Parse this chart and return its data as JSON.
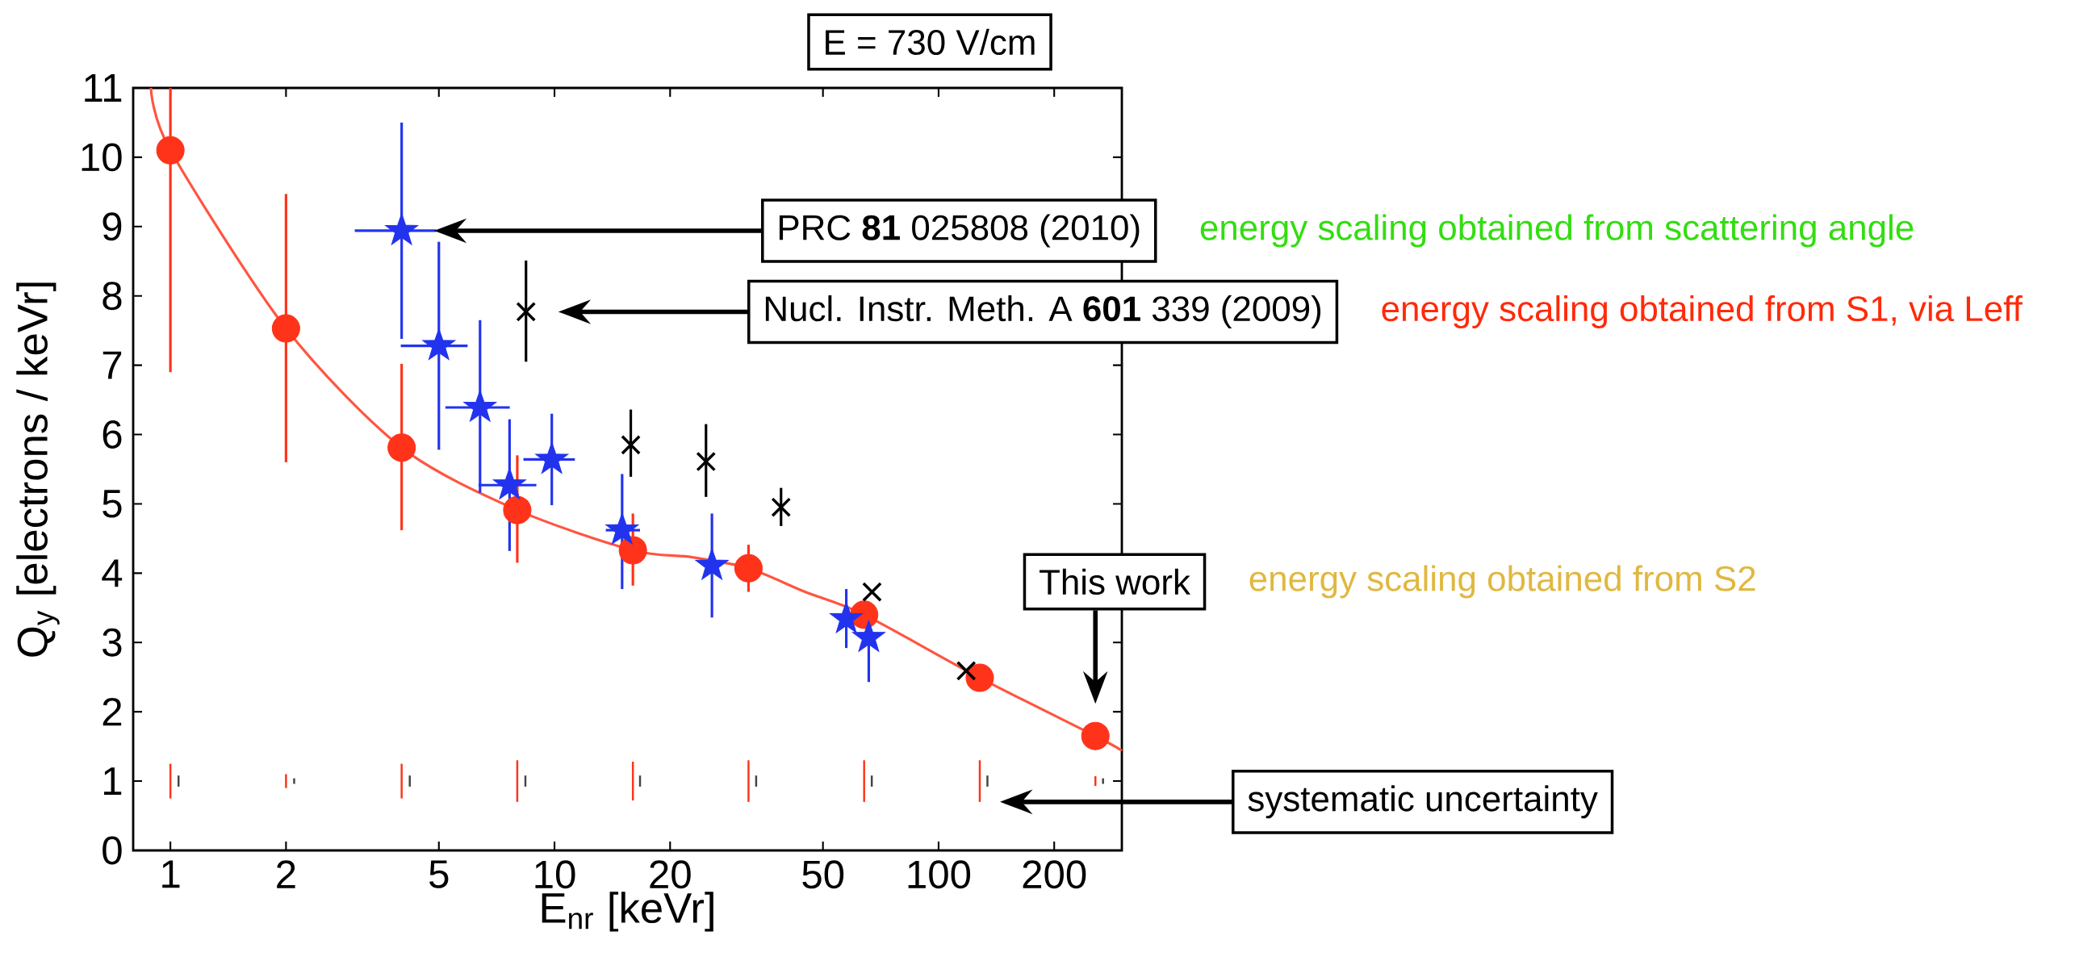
{
  "chart_data": {
    "type": "scatter",
    "xlabel": "E$_{nr}$ [keVr]",
    "ylabel": "Q$_{y}$ [electrons / keVr]",
    "log": "x",
    "xlim": [
      0.8,
      300
    ],
    "ylim": [
      0,
      11
    ],
    "xticks": [
      1,
      2,
      5,
      10,
      20,
      50,
      100,
      200
    ],
    "yticks": [
      0,
      1,
      2,
      3,
      4,
      5,
      6,
      7,
      8,
      9,
      10,
      11
    ],
    "series": [
      {
        "marker": "circle",
        "color": "#ff3319",
        "x": [
          1,
          2,
          4,
          8,
          16,
          32,
          64,
          128,
          256
        ],
        "values": [
          10.1,
          7.53,
          5.81,
          4.91,
          4.33,
          4.07,
          3.4,
          2.49,
          1.65
        ],
        "errors": [
          [
            6.9,
            11
          ],
          [
            5.6,
            9.47
          ],
          [
            4.62,
            7.02
          ],
          [
            4.15,
            5.7
          ],
          [
            3.82,
            4.86
          ],
          [
            3.73,
            4.41
          ],
          null,
          null,
          null
        ]
      },
      {
        "type": "line",
        "marker": "none",
        "color": "#ff5540",
        "x": [
          0.89,
          1,
          2,
          4,
          8,
          16,
          22.8,
          32,
          44.9,
          64,
          128,
          256,
          300
        ],
        "values": [
          11,
          10.1,
          7.53,
          5.81,
          4.91,
          4.33,
          4.23,
          4.07,
          3.73,
          3.4,
          2.49,
          1.65,
          1.44
        ]
      },
      {
        "marker": "star",
        "color": "#2233ee",
        "x": [
          4.0,
          5.0,
          6.4,
          7.64,
          9.84,
          15.0,
          25.7,
          57.5,
          65.8
        ],
        "values": [
          8.94,
          7.28,
          6.39,
          5.27,
          5.64,
          4.62,
          4.11,
          3.34,
          3.07
        ],
        "errors": [
          [
            7.38,
            10.5
          ],
          [
            5.78,
            8.78
          ],
          [
            5.16,
            7.65
          ],
          [
            4.32,
            6.22
          ],
          [
            4.98,
            6.3
          ],
          [
            3.77,
            5.43
          ],
          [
            3.36,
            4.86
          ],
          [
            2.92,
            3.77
          ],
          [
            2.43,
            3.32
          ]
        ],
        "xerrors": [
          [
            3.02,
            4.92
          ],
          [
            3.98,
            5.94
          ],
          [
            5.2,
            7.65
          ],
          [
            6.34,
            8.97
          ],
          [
            8.3,
            11.3
          ],
          [
            13.6,
            16.7
          ],
          null,
          null,
          null
        ]
      },
      {
        "marker": "cross",
        "color": "#000000",
        "x": [
          8.43,
          15.8,
          24.8,
          38.9,
          67.1,
          118
        ],
        "values": [
          7.77,
          5.85,
          5.61,
          4.95,
          3.73,
          2.59
        ],
        "errors": [
          [
            7.05,
            8.51
          ],
          [
            5.39,
            6.36
          ],
          [
            5.1,
            6.15
          ],
          [
            4.68,
            5.23
          ],
          null,
          null
        ]
      },
      {
        "type": "line",
        "marker": "none",
        "color": "#ff3319",
        "x": [
          1,
          1
        ],
        "values": [
          0.75,
          1.25
        ]
      },
      {
        "type": "line",
        "marker": "none",
        "color": "#ff3319",
        "x": [
          2,
          2
        ],
        "values": [
          0.9,
          1.1
        ]
      },
      {
        "type": "line",
        "marker": "none",
        "color": "#ff3319",
        "x": [
          4,
          4
        ],
        "values": [
          0.75,
          1.25
        ]
      },
      {
        "type": "line",
        "marker": "none",
        "color": "#ff3319",
        "x": [
          8,
          8
        ],
        "values": [
          0.7,
          1.3
        ]
      },
      {
        "type": "line",
        "marker": "none",
        "color": "#ff3319",
        "x": [
          16,
          16
        ],
        "values": [
          0.72,
          1.28
        ]
      },
      {
        "type": "line",
        "marker": "none",
        "color": "#ff3319",
        "x": [
          32,
          32
        ],
        "values": [
          0.7,
          1.3
        ]
      },
      {
        "type": "line",
        "marker": "none",
        "color": "#ff3319",
        "x": [
          64,
          64
        ],
        "values": [
          0.7,
          1.3
        ]
      },
      {
        "type": "line",
        "marker": "none",
        "color": "#ff3319",
        "x": [
          128,
          128
        ],
        "values": [
          0.7,
          1.3
        ]
      },
      {
        "type": "line",
        "marker": "none",
        "color": "#ff3319",
        "x": [
          256,
          256
        ],
        "values": [
          0.93,
          1.07
        ]
      },
      {
        "type": "line",
        "marker": "none",
        "color": "#444444",
        "x": [
          1.05,
          1.05
        ],
        "values": [
          0.92,
          1.08
        ]
      },
      {
        "type": "line",
        "marker": "none",
        "color": "#444444",
        "x": [
          2.1,
          2.1
        ],
        "values": [
          0.96,
          1.04
        ]
      },
      {
        "type": "line",
        "marker": "none",
        "color": "#444444",
        "x": [
          4.2,
          4.2
        ],
        "values": [
          0.92,
          1.08
        ]
      },
      {
        "type": "line",
        "marker": "none",
        "color": "#444444",
        "x": [
          8.4,
          8.4
        ],
        "values": [
          0.92,
          1.08
        ]
      },
      {
        "type": "line",
        "marker": "none",
        "color": "#444444",
        "x": [
          16.7,
          16.7
        ],
        "values": [
          0.92,
          1.08
        ]
      },
      {
        "type": "line",
        "marker": "none",
        "color": "#444444",
        "x": [
          33.5,
          33.5
        ],
        "values": [
          0.92,
          1.08
        ]
      },
      {
        "type": "line",
        "marker": "none",
        "color": "#444444",
        "x": [
          67,
          67
        ],
        "values": [
          0.92,
          1.08
        ]
      },
      {
        "type": "line",
        "marker": "none",
        "color": "#444444",
        "x": [
          134,
          134
        ],
        "values": [
          0.92,
          1.08
        ]
      },
      {
        "type": "line",
        "marker": "none",
        "color": "#444444",
        "x": [
          268,
          268
        ],
        "values": [
          0.96,
          1.04
        ]
      }
    ],
    "annotations": [
      "E = 730 V/cm",
      "PRC **81** 025808 (2010)",
      "Nucl. Instr. Meth. A **601** 339 (2009)",
      "This work",
      "systematic uncertainty",
      "energy scaling obtained from scattering angle",
      "energy scaling obtained from S1, via Leff",
      "energy scaling obtained from S2"
    ]
  }
}
